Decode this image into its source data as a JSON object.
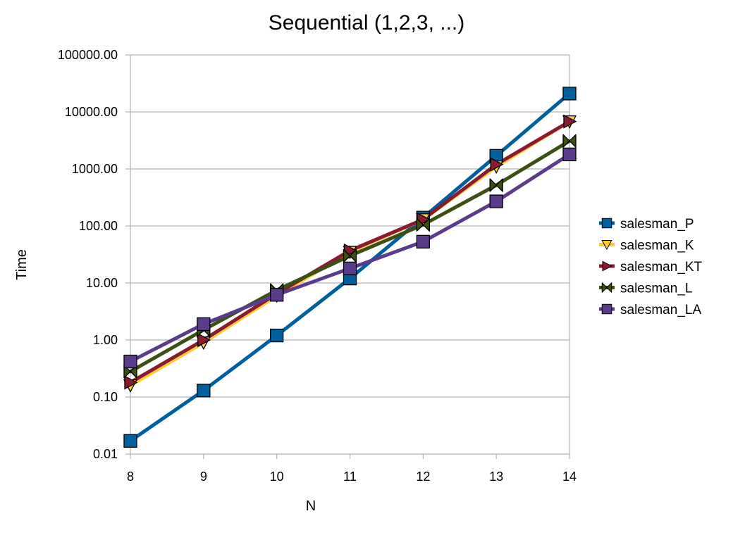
{
  "chart_data": {
    "type": "line",
    "title": "Sequential (1,2,3, ...)",
    "xlabel": "N",
    "ylabel": "Time",
    "x": [
      8,
      9,
      10,
      11,
      12,
      13,
      14
    ],
    "y_scale": "log",
    "ylim": [
      0.01,
      100000
    ],
    "y_ticks": [
      0.01,
      0.1,
      1,
      10,
      100,
      1000,
      10000,
      100000
    ],
    "y_tick_labels": [
      "0.01",
      "0.10",
      "1.00",
      "10.00",
      "100.00",
      "1000.00",
      "10000.00",
      "100000.00"
    ],
    "x_tick_labels": [
      "8",
      "9",
      "10",
      "11",
      "12",
      "13",
      "14"
    ],
    "grid": "horizontal",
    "legend": "right",
    "series": [
      {
        "name": "salesman_P",
        "color": "#00609e",
        "marker": "square",
        "values": [
          0.017,
          0.13,
          1.2,
          12,
          140,
          1700,
          21000
        ]
      },
      {
        "name": "salesman_K",
        "color": "#ffcc33",
        "marker": "triangle-down",
        "values": [
          0.16,
          0.9,
          6,
          35,
          130,
          1100,
          6800
        ]
      },
      {
        "name": "salesman_KT",
        "color": "#8b1a2f",
        "marker": "triangle-right",
        "values": [
          0.18,
          1.0,
          6.5,
          37,
          130,
          1200,
          6800
        ]
      },
      {
        "name": "salesman_L",
        "color": "#3d5014",
        "marker": "bowtie",
        "values": [
          0.28,
          1.5,
          7.5,
          30,
          105,
          520,
          3100
        ]
      },
      {
        "name": "salesman_LA",
        "color": "#5b3b8c",
        "marker": "square",
        "values": [
          0.42,
          1.9,
          6.2,
          18,
          53,
          270,
          1800
        ]
      }
    ]
  }
}
